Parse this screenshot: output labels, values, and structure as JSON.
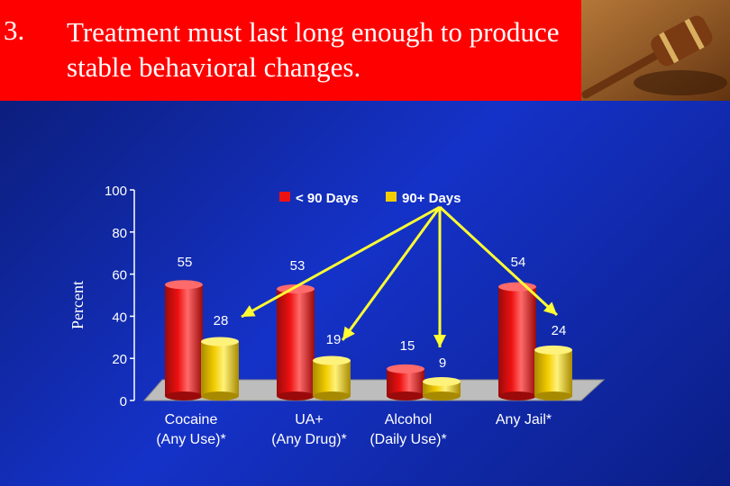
{
  "slide": {
    "number": "3.",
    "title": "Treatment must last long enough to produce stable behavioral changes."
  },
  "gavel_image": {
    "icon": "gavel-icon"
  },
  "colors": {
    "header_bg": "#ff0000",
    "bar_short": "#ee1111",
    "bar_long": "#f2cc00",
    "arrow": "#ffff33"
  },
  "chart_data": {
    "type": "bar",
    "ylabel": "Percent",
    "ylim": [
      0,
      100
    ],
    "yticks": [
      "0",
      "20",
      "40",
      "60",
      "80",
      "100"
    ],
    "categories": [
      {
        "line1": "Cocaine",
        "line2": "(Any Use)*"
      },
      {
        "line1": "UA+",
        "line2": "(Any Drug)*"
      },
      {
        "line1": "Alcohol",
        "line2": "(Daily Use)*"
      },
      {
        "line1": "Any Jail*",
        "line2": ""
      }
    ],
    "series": [
      {
        "name": "< 90 Days",
        "values": [
          55,
          53,
          15,
          54
        ]
      },
      {
        "name": "90+ Days",
        "values": [
          28,
          19,
          9,
          24
        ]
      }
    ],
    "legend_placement": "top",
    "grid": false
  }
}
